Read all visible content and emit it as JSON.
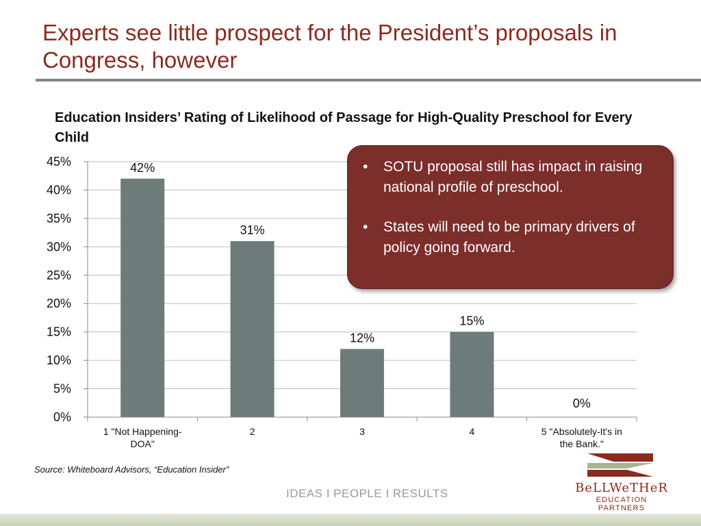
{
  "slide": {
    "title": "Experts see little prospect for the President’s proposals in Congress, however",
    "source": "Source: Whiteboard Advisors, “Education Insider”",
    "tagline": "IDEAS  I  PEOPLE  I  RESULTS"
  },
  "callout": {
    "bullets": [
      "SOTU proposal still has impact in raising national profile of preschool.",
      "States will need to be primary drivers of policy going forward."
    ]
  },
  "logo": {
    "name": "BeLLWeTHeR",
    "sub": "EDUCATION PARTNERS"
  },
  "colors": {
    "bar": "#6D7B79",
    "title": "#8B2A1E",
    "callout": "#7B2E2A",
    "rule": "#7C8A7A"
  },
  "chart_data": {
    "type": "bar",
    "title": "Education Insiders’ Rating of Likelihood of Passage for High-Quality Preschool for Every Child",
    "categories": [
      [
        "1 \"Not Happening-",
        "DOA\""
      ],
      [
        "2"
      ],
      [
        "3"
      ],
      [
        "4"
      ],
      [
        "5 \"Absolutely-It's in",
        "the Bank.\""
      ]
    ],
    "values": [
      42,
      31,
      12,
      15,
      0
    ],
    "data_labels": [
      "42%",
      "31%",
      "12%",
      "15%",
      "0%"
    ],
    "yticks": [
      "0%",
      "5%",
      "10%",
      "15%",
      "20%",
      "25%",
      "30%",
      "35%",
      "40%",
      "45%"
    ],
    "ylim": [
      0,
      45
    ],
    "grid": true
  }
}
